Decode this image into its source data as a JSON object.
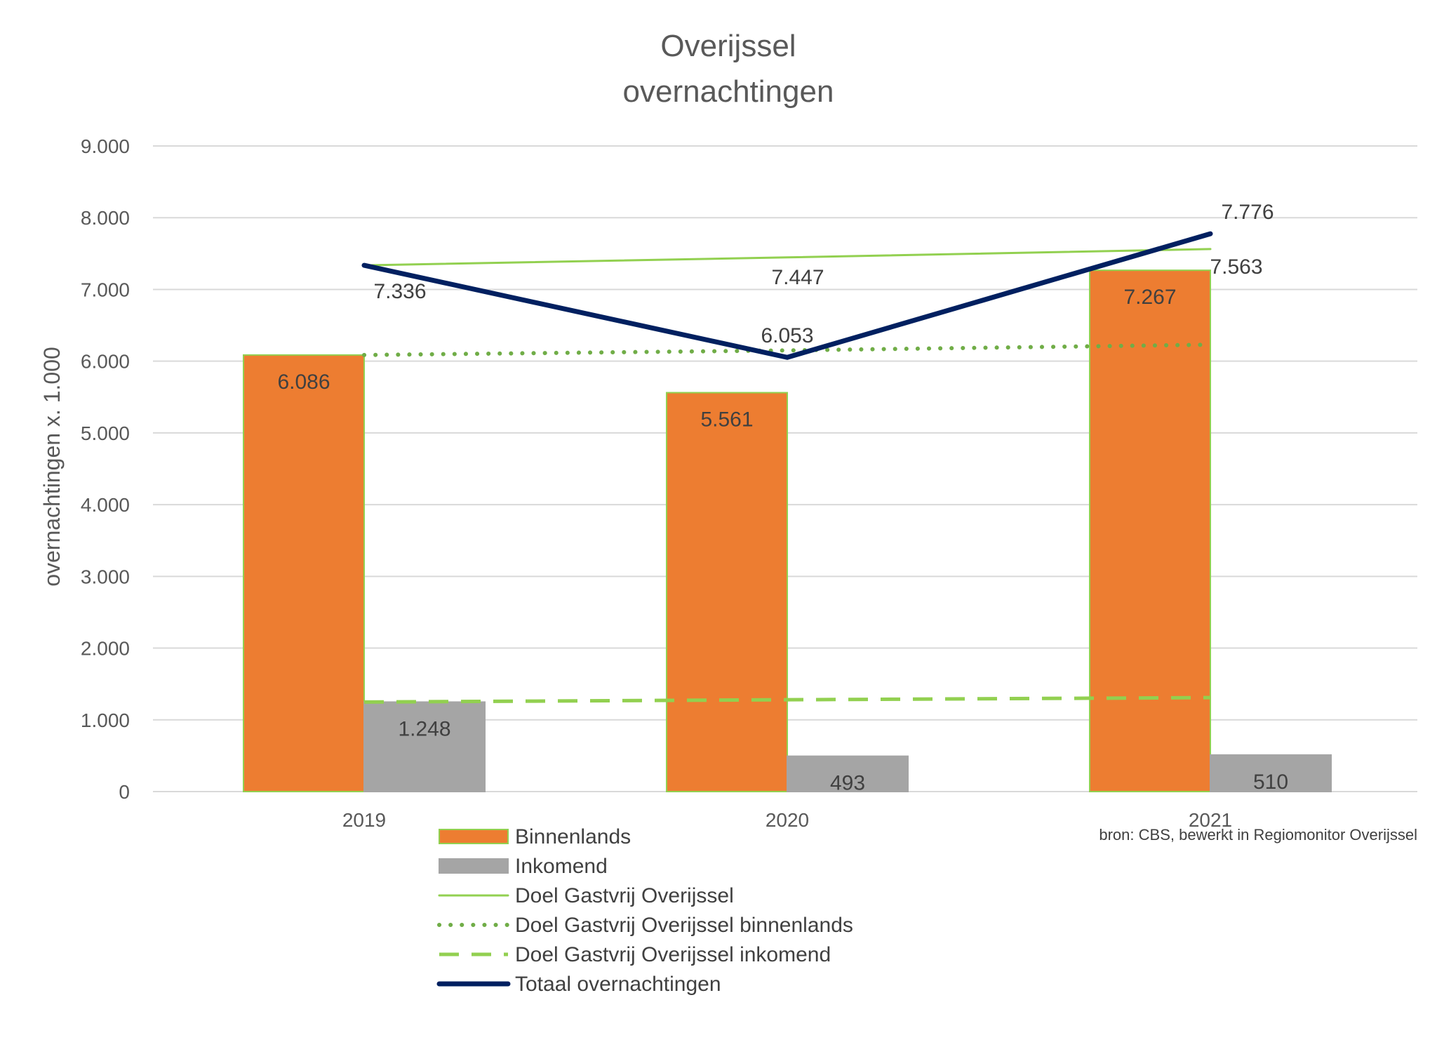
{
  "chart_data": {
    "type": "bar",
    "title_lines": [
      "Overijssel",
      "overnachtingen"
    ],
    "ylabel": "overnachtingen x. 1.000",
    "xlabel": "",
    "ylim": [
      0,
      9000
    ],
    "yticks": [
      {
        "value": 0,
        "label": "0"
      },
      {
        "value": 1000,
        "label": "1.000"
      },
      {
        "value": 2000,
        "label": "2.000"
      },
      {
        "value": 3000,
        "label": "3.000"
      },
      {
        "value": 4000,
        "label": "4.000"
      },
      {
        "value": 5000,
        "label": "5.000"
      },
      {
        "value": 6000,
        "label": "6.000"
      },
      {
        "value": 7000,
        "label": "7.000"
      },
      {
        "value": 8000,
        "label": "8.000"
      },
      {
        "value": 9000,
        "label": "9.000"
      }
    ],
    "grid": true,
    "categories": [
      "2019",
      "2020",
      "2021"
    ],
    "bar_series": [
      {
        "name": "Binnenlands",
        "color": "#ED7D31",
        "edge": "#92D050",
        "values": [
          6086,
          5561,
          7267
        ],
        "labels": [
          "6.086",
          "5.561",
          "7.267"
        ]
      },
      {
        "name": "Inkomend",
        "color": "#A5A5A5",
        "edge": "#A5A5A5",
        "values": [
          1248,
          493,
          510
        ],
        "labels": [
          "1.248",
          "493",
          "510"
        ]
      }
    ],
    "line_series": [
      {
        "name": "Doel Gastvrij Overijssel",
        "color": "#92D050",
        "style": "solid",
        "values": [
          7336,
          7447,
          7563
        ],
        "labels": [
          "7.336",
          "7.447",
          "7.563"
        ]
      },
      {
        "name": "Doel Gastvrij Overijssel binnenlands",
        "color": "#70AD47",
        "style": "dotted",
        "values": [
          6086,
          6150,
          6230
        ],
        "labels": []
      },
      {
        "name": "Doel Gastvrij Overijssel inkomend",
        "color": "#92D050",
        "style": "dashed",
        "values": [
          1248,
          1280,
          1310
        ],
        "labels": []
      },
      {
        "name": "Totaal overnachtingen",
        "color": "#002060",
        "style": "solid-thick",
        "values": [
          7336,
          6053,
          7776
        ],
        "labels": [
          "",
          "6.053",
          "7.776"
        ]
      }
    ],
    "legend_position": "bottom-left",
    "source": "bron: CBS, bewerkt in Regiomonitor Overijssel"
  }
}
